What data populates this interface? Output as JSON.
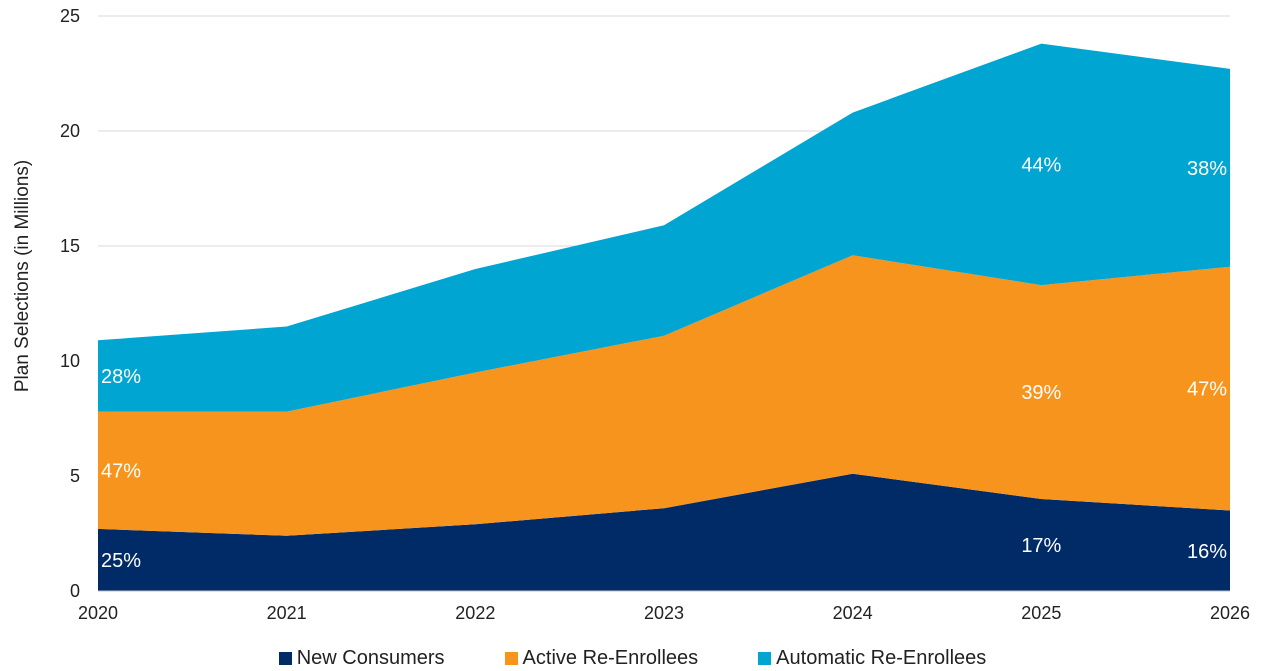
{
  "chart_data": {
    "type": "area",
    "stacked": true,
    "title": "",
    "xlabel": "",
    "ylabel": "Plan Selections (in Millions)",
    "ylim": [
      0,
      25
    ],
    "yticks": [
      0,
      5,
      10,
      15,
      20,
      25
    ],
    "x": [
      "2020",
      "2021",
      "2022",
      "2023",
      "2024",
      "2025",
      "2026"
    ],
    "grid": "horizontal",
    "legend_position": "bottom",
    "series": [
      {
        "name": "New Consumers",
        "color": "#002b66",
        "values": [
          2.7,
          2.4,
          2.9,
          3.6,
          5.1,
          4.0,
          3.5
        ],
        "labels": [
          {
            "x": "2020",
            "text": "25%"
          },
          {
            "x": "2025",
            "text": "17%"
          },
          {
            "x": "2026",
            "text": "16%"
          }
        ]
      },
      {
        "name": "Active Re-Enrollees",
        "color": "#f7941d",
        "values": [
          5.1,
          5.4,
          6.6,
          7.5,
          9.5,
          9.3,
          10.6
        ],
        "labels": [
          {
            "x": "2020",
            "text": "47%"
          },
          {
            "x": "2025",
            "text": "39%"
          },
          {
            "x": "2026",
            "text": "47%"
          }
        ]
      },
      {
        "name": "Automatic Re-Enrollees",
        "color": "#00a5d1",
        "values": [
          3.1,
          3.7,
          4.5,
          4.8,
          6.2,
          10.5,
          8.6
        ],
        "labels": [
          {
            "x": "2020",
            "text": "28%"
          },
          {
            "x": "2025",
            "text": "44%"
          },
          {
            "x": "2026",
            "text": "38%"
          }
        ]
      }
    ]
  }
}
